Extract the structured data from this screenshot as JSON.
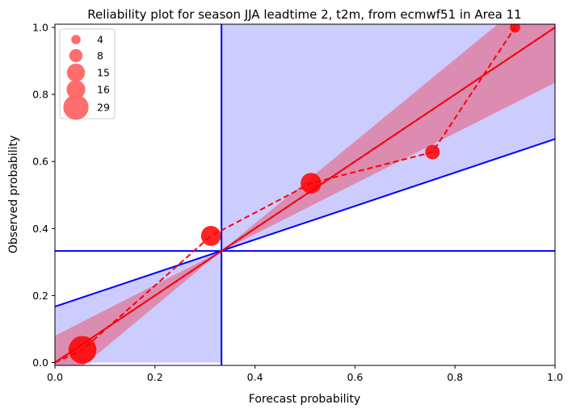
{
  "chart_data": {
    "type": "scatter",
    "title": "Reliability plot for season JJA leadtime 2, t2m, from ecmwf51 in Area 11",
    "xlabel": "Forecast probability",
    "ylabel": "Observed probability",
    "xlim": [
      0,
      1
    ],
    "ylim": [
      0,
      1
    ],
    "x_ticks": [
      "0.0",
      "0.2",
      "0.4",
      "0.6",
      "0.8",
      "1.0"
    ],
    "y_ticks": [
      "0.0",
      "0.2",
      "0.4",
      "0.6",
      "0.8",
      "1.0"
    ],
    "grid": false,
    "legend_position": "top-left",
    "climatology": 0.333,
    "no_skill_line": {
      "intercept": 0.167,
      "slope": 0.5
    },
    "fit_line": {
      "intercept": 0.0,
      "slope": 1.0
    },
    "confidence_band": {
      "at_x0": [
        -0.08,
        0.08
      ],
      "at_x1": [
        0.835,
        1.15
      ]
    },
    "series": [
      {
        "x": [
          0.055,
          0.312,
          0.512,
          0.755,
          0.92
        ],
        "y": [
          0.038,
          0.378,
          0.535,
          0.628,
          1.0
        ],
        "counts": [
          29,
          15,
          16,
          8,
          4
        ]
      }
    ],
    "legend_entries": [
      {
        "label": "4",
        "count": 4
      },
      {
        "label": "8",
        "count": 8
      },
      {
        "label": "15",
        "count": 15
      },
      {
        "label": "16",
        "count": 16
      },
      {
        "label": "29",
        "count": 29
      }
    ],
    "colors": {
      "skill_region": "#ccccff",
      "band": "#dc8cb0",
      "marker": "#ff0000",
      "lines": "#0000ff",
      "fit": "#ff0000",
      "legend_marker": "#ff6666"
    }
  }
}
